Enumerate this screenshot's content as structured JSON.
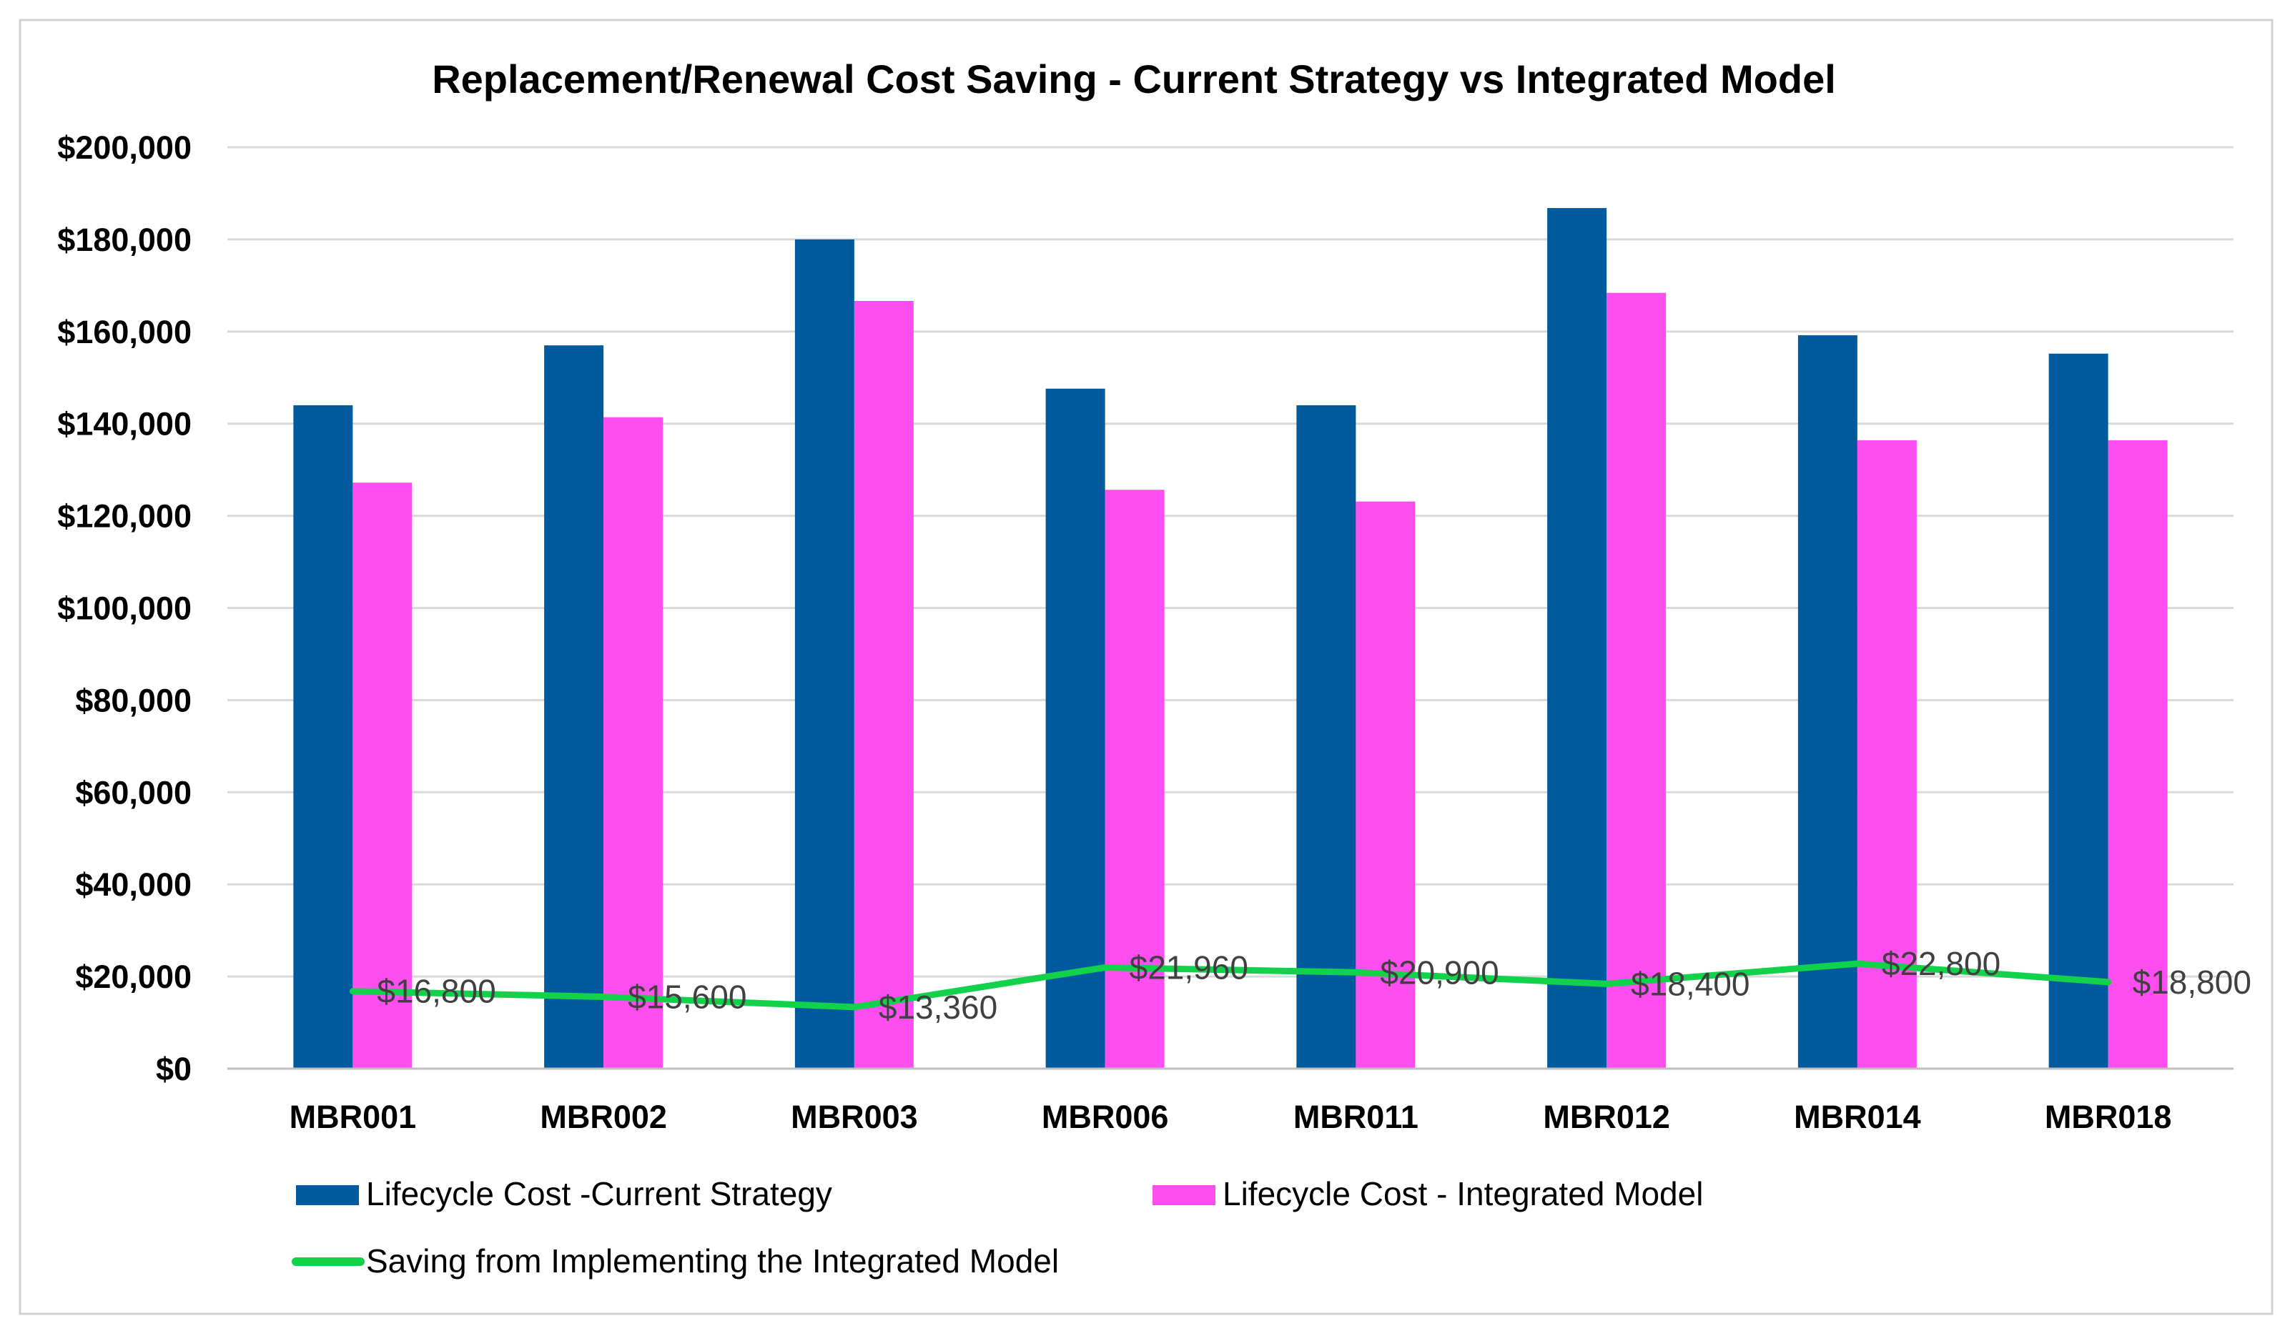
{
  "chart_data": {
    "type": "bar",
    "title": "Replacement/Renewal Cost Saving -  Current Strategy vs Integrated Model",
    "categories": [
      "MBR001",
      "MBR002",
      "MBR003",
      "MBR006",
      "MBR011",
      "MBR012",
      "MBR014",
      "MBR018"
    ],
    "ylim": [
      0,
      200000
    ],
    "yticks": [
      0,
      20000,
      40000,
      60000,
      80000,
      100000,
      120000,
      140000,
      160000,
      180000,
      200000
    ],
    "ytick_labels": [
      "$0",
      "$20,000",
      "$40,000",
      "$60,000",
      "$80,000",
      "$100,000",
      "$120,000",
      "$140,000",
      "$160,000",
      "$180,000",
      "$200,000"
    ],
    "grid": true,
    "legend_position": "bottom",
    "series": [
      {
        "name": "Lifecycle Cost -Current Strategy",
        "kind": "bar",
        "color": "#005a9e",
        "values": [
          144000,
          157000,
          180000,
          147600,
          144000,
          186800,
          159200,
          155200
        ]
      },
      {
        "name": "Lifecycle Cost - Integrated Model",
        "kind": "bar",
        "color": "#ff4ef0",
        "values": [
          127200,
          141400,
          166640,
          125640,
          123100,
          168400,
          136400,
          136400
        ]
      },
      {
        "name": "Saving from Implementing the Integrated Model",
        "kind": "line",
        "color": "#12d14b",
        "values": [
          16800,
          15600,
          13360,
          21960,
          20900,
          18400,
          22800,
          18800
        ],
        "data_labels": [
          "$16,800",
          "$15,600",
          "$13,360",
          "$21,960",
          "$20,900",
          "$18,400",
          "$22,800",
          "$18,800"
        ]
      }
    ]
  }
}
